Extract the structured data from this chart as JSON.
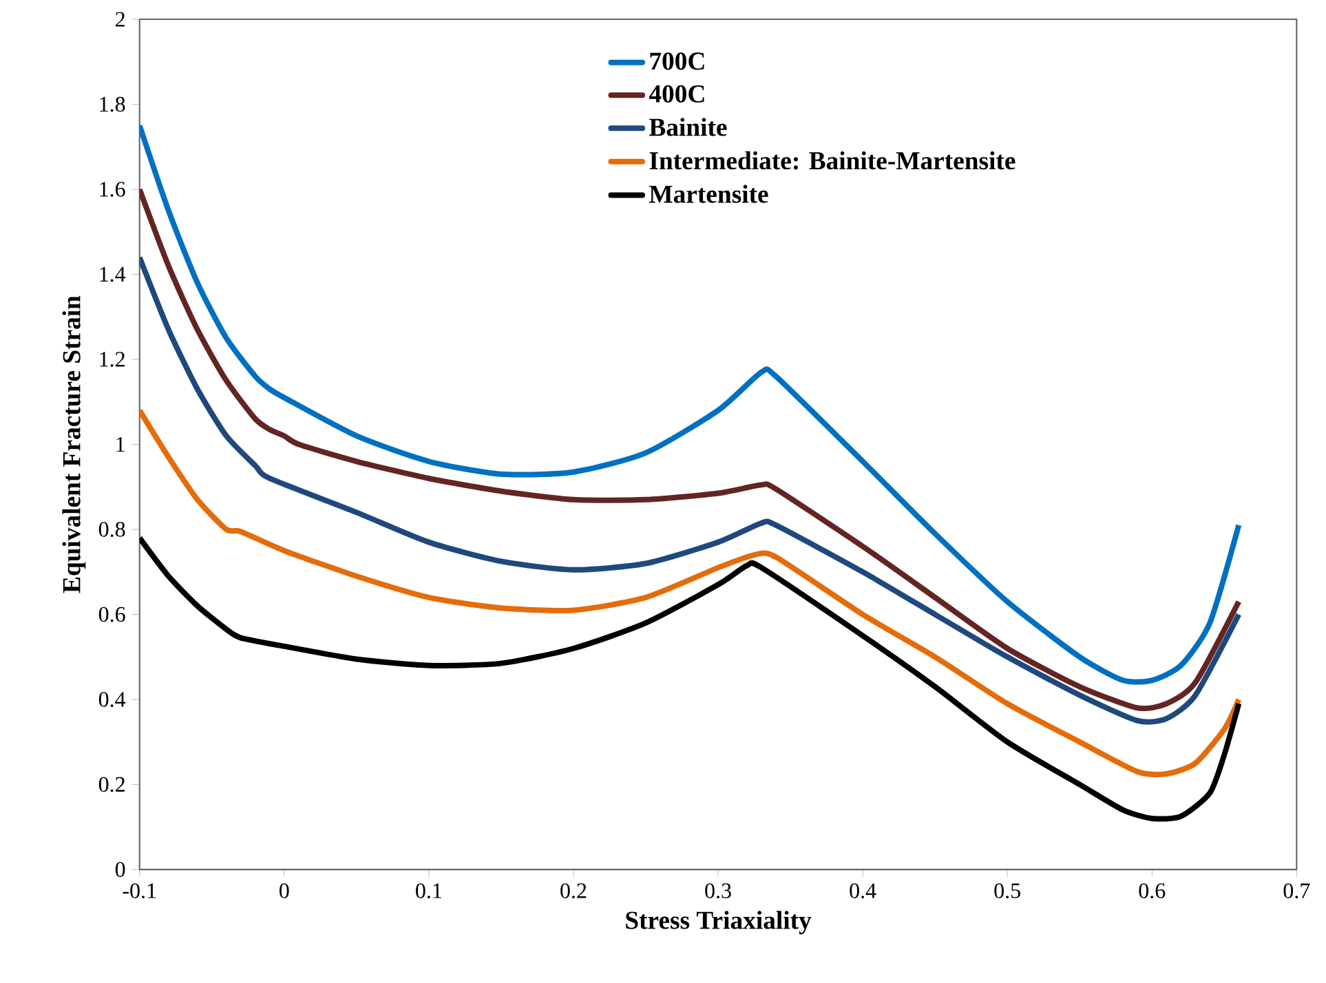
{
  "chart_data": {
    "type": "line",
    "xlabel": "Stress Triaxiality",
    "ylabel": "Equivalent Fracture Strain",
    "xlim": [
      -0.1,
      0.7
    ],
    "ylim": [
      0,
      2
    ],
    "xticks": [
      -0.1,
      0,
      0.1,
      0.2,
      0.3,
      0.4,
      0.5,
      0.6,
      0.7
    ],
    "yticks": [
      0,
      0.2,
      0.4,
      0.6,
      0.8,
      1,
      1.2,
      1.4,
      1.6,
      1.8,
      2
    ],
    "legend": "top",
    "grid": false,
    "marker": "none",
    "line_style": "solid",
    "series": [
      {
        "name": "700C",
        "color": "#0070c0",
        "x": [
          -0.1,
          -0.08,
          -0.06,
          -0.04,
          -0.02,
          -0.01,
          0,
          0.05,
          0.1,
          0.15,
          0.2,
          0.25,
          0.3,
          0.33,
          0.34,
          0.4,
          0.45,
          0.5,
          0.55,
          0.58,
          0.6,
          0.62,
          0.64,
          0.66
        ],
        "values": [
          1.75,
          1.55,
          1.38,
          1.25,
          1.16,
          1.13,
          1.11,
          1.02,
          0.96,
          0.93,
          0.935,
          0.98,
          1.08,
          1.17,
          1.16,
          0.96,
          0.79,
          0.63,
          0.5,
          0.445,
          0.445,
          0.48,
          0.58,
          0.81
        ]
      },
      {
        "name": "400C",
        "color": "#632523",
        "x": [
          -0.1,
          -0.08,
          -0.06,
          -0.04,
          -0.02,
          -0.01,
          0,
          0.01,
          0.05,
          0.1,
          0.15,
          0.2,
          0.25,
          0.3,
          0.33,
          0.34,
          0.4,
          0.45,
          0.5,
          0.55,
          0.59,
          0.61,
          0.63,
          0.66
        ],
        "values": [
          1.6,
          1.42,
          1.27,
          1.15,
          1.06,
          1.035,
          1.02,
          1.0,
          0.96,
          0.92,
          0.89,
          0.87,
          0.87,
          0.885,
          0.905,
          0.895,
          0.76,
          0.64,
          0.52,
          0.43,
          0.38,
          0.39,
          0.44,
          0.63
        ]
      },
      {
        "name": "Bainite",
        "color": "#1f497d",
        "x": [
          -0.1,
          -0.08,
          -0.06,
          -0.04,
          -0.02,
          -0.01,
          0.05,
          0.1,
          0.15,
          0.2,
          0.25,
          0.3,
          0.33,
          0.34,
          0.4,
          0.45,
          0.5,
          0.55,
          0.59,
          0.61,
          0.63,
          0.66
        ],
        "values": [
          1.44,
          1.27,
          1.13,
          1.02,
          0.95,
          0.92,
          0.84,
          0.77,
          0.725,
          0.705,
          0.72,
          0.77,
          0.815,
          0.81,
          0.7,
          0.6,
          0.5,
          0.41,
          0.35,
          0.355,
          0.41,
          0.6
        ]
      },
      {
        "name": "Intermediate: Bainite-Martensite",
        "color": "#e46c0a",
        "x": [
          -0.1,
          -0.08,
          -0.06,
          -0.04,
          -0.03,
          0,
          0.05,
          0.1,
          0.15,
          0.2,
          0.25,
          0.3,
          0.325,
          0.34,
          0.4,
          0.45,
          0.5,
          0.55,
          0.59,
          0.61,
          0.63,
          0.65,
          0.66
        ],
        "values": [
          1.08,
          0.97,
          0.87,
          0.8,
          0.795,
          0.75,
          0.69,
          0.64,
          0.615,
          0.61,
          0.64,
          0.71,
          0.74,
          0.735,
          0.6,
          0.5,
          0.39,
          0.3,
          0.23,
          0.225,
          0.25,
          0.33,
          0.4
        ]
      },
      {
        "name": "Martensite",
        "color": "#000000",
        "x": [
          -0.1,
          -0.08,
          -0.06,
          -0.04,
          -0.03,
          0,
          0.05,
          0.1,
          0.15,
          0.2,
          0.25,
          0.3,
          0.32,
          0.33,
          0.4,
          0.45,
          0.5,
          0.55,
          0.58,
          0.6,
          0.62,
          0.64,
          0.65,
          0.66
        ],
        "values": [
          0.78,
          0.69,
          0.62,
          0.565,
          0.545,
          0.525,
          0.495,
          0.48,
          0.485,
          0.52,
          0.58,
          0.67,
          0.715,
          0.71,
          0.55,
          0.43,
          0.3,
          0.2,
          0.14,
          0.12,
          0.125,
          0.18,
          0.27,
          0.39
        ]
      }
    ]
  }
}
